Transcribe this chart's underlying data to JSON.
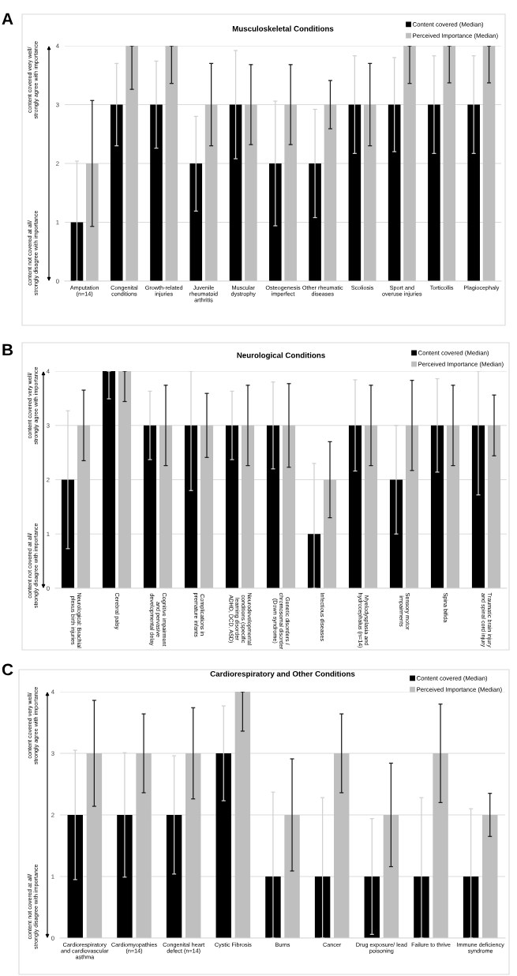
{
  "chart_data": [
    {
      "type": "bar",
      "title": "Musculoskeletal Conditions",
      "categories": [
        "Amputation\n(n=14)",
        "Congenital\nconditions",
        "Growth-related\ninjuries",
        "Juvenile\nrheumatoid\narthritis",
        "Muscular\ndystrophy",
        "Osteogenesis\nimperfect",
        "Other rheumatic\ndiseases",
        "Scoliosis",
        "Sport and\noveruse injuries",
        "Torticollis",
        "Plagiocephaly"
      ],
      "series": [
        {
          "name": "Content covered (Median)",
          "color": "#000000",
          "values": [
            1,
            3,
            3,
            2,
            3,
            2,
            2,
            3,
            3,
            3,
            3
          ],
          "errors": [
            [
              0,
              2.04
            ],
            [
              2.3,
              3.7
            ],
            [
              2.26,
              3.74
            ],
            [
              1.19,
              2.8
            ],
            [
              2.08,
              3.92
            ],
            [
              0.94,
              3.06
            ],
            [
              1.08,
              2.92
            ],
            [
              2.17,
              3.83
            ],
            [
              2.2,
              3.8
            ],
            [
              2.17,
              3.83
            ],
            [
              2.17,
              3.83
            ]
          ]
        },
        {
          "name": "Perceived Importance (Median)",
          "color": "#bfbfbf",
          "values": [
            2,
            4,
            4,
            3,
            3,
            3,
            3,
            3,
            4,
            4,
            4
          ],
          "errors": [
            [
              0.93,
              3.07
            ],
            [
              3.26,
              4
            ],
            [
              3.36,
              4
            ],
            [
              2.3,
              3.7
            ],
            [
              2.32,
              3.68
            ],
            [
              2.32,
              3.68
            ],
            [
              2.59,
              3.41
            ],
            [
              2.3,
              3.7
            ],
            [
              3.36,
              4
            ],
            [
              3.37,
              4
            ],
            [
              3.37,
              4
            ]
          ]
        }
      ],
      "ylim": [
        0,
        4
      ],
      "yticks": [
        0,
        1,
        2,
        3,
        4
      ],
      "grid": "y",
      "legend": "top right",
      "annotations": [
        "A",
        "content covered very well/\nstrongly agree with importance",
        "content not covered at all/\nstrongly disagree with importance"
      ]
    },
    {
      "type": "bar",
      "title": "Neurological Conditions",
      "categories": [
        "Neurological: Brachial\nplexus birth injuries",
        "Cerebral palsy",
        "Cognitive impairment\nand pervasive\ndevelopmental delay",
        "Complications in\npremature infants",
        "Neurodevelopmental\nconditions (specific\nlearning disorder\nADHD, DCD, ASD)",
        "Genetic disorders /\nchromosomal disorder\n(Down syndrome)",
        "Infectious diseases",
        "Myelodysplasia and\nhydrocephalus (n=14)",
        "Sensory motor\nimpairments",
        "Spina bifida",
        "Traumatic brain injury\nand spinal cord injury"
      ],
      "series": [
        {
          "name": "Content covered (Median)",
          "color": "#000000",
          "values": [
            2,
            4,
            3,
            3,
            3,
            3,
            1,
            3,
            2,
            3,
            3
          ],
          "errors": [
            [
              0.73,
              3.27
            ],
            [
              3.49,
              4
            ],
            [
              2.37,
              3.63
            ],
            [
              1.8,
              4
            ],
            [
              2.37,
              3.63
            ],
            [
              2.2,
              3.8
            ],
            [
              0,
              2.3
            ],
            [
              2.16,
              3.84
            ],
            [
              1.0,
              3.0
            ],
            [
              2.14,
              3.86
            ],
            [
              1.72,
              4
            ]
          ]
        },
        {
          "name": "Perceived Importance (Median)",
          "color": "#bfbfbf",
          "values": [
            3,
            4,
            3,
            3,
            3,
            3,
            2,
            3,
            3,
            3,
            3
          ],
          "errors": [
            [
              2.35,
              3.65
            ],
            [
              3.44,
              4
            ],
            [
              2.26,
              3.74
            ],
            [
              2.41,
              3.59
            ],
            [
              2.26,
              3.74
            ],
            [
              2.23,
              3.77
            ],
            [
              1.3,
              2.7
            ],
            [
              2.26,
              3.74
            ],
            [
              2.17,
              3.83
            ],
            [
              2.26,
              3.74
            ],
            [
              2.44,
              3.56
            ]
          ]
        }
      ],
      "ylim": [
        0,
        4
      ],
      "yticks": [
        0,
        1,
        2,
        3,
        4
      ],
      "grid": "y",
      "legend": "top right",
      "annotations": [
        "B",
        "content covered very well/\nstrongly agree with importance",
        "content not covered at all/\nstrongly disagree with importance"
      ]
    },
    {
      "type": "bar",
      "title": "Cardiorespiratory and Other Conditions",
      "categories": [
        "Cardiorespiratory\nand cardiovascular\nasthma",
        "Cardiomyopathies\n(n=14)",
        "Congenital heart\ndefect (n=14)",
        "Cystic Fibrosis",
        "Burns",
        "Cancer",
        "Drug exposure/ lead\npoisoning",
        "Failure to thrive",
        "Immune deficiency\nsyndrome"
      ],
      "series": [
        {
          "name": "Content covered (Median)",
          "color": "#000000",
          "values": [
            2,
            2,
            2,
            3,
            1,
            1,
            1,
            1,
            1
          ],
          "errors": [
            [
              0.95,
              3.05
            ],
            [
              0.99,
              3.01
            ],
            [
              1.04,
              2.96
            ],
            [
              2.23,
              3.77
            ],
            [
              0,
              2.37
            ],
            [
              0,
              2.28
            ],
            [
              0.06,
              1.94
            ],
            [
              0,
              2.28
            ],
            [
              0,
              2.1
            ]
          ]
        },
        {
          "name": "Perceived Importance (Median)",
          "color": "#bfbfbf",
          "values": [
            3,
            3,
            3,
            4,
            2,
            3,
            2,
            3,
            2
          ],
          "errors": [
            [
              2.14,
              3.86
            ],
            [
              2.36,
              3.64
            ],
            [
              2.26,
              3.74
            ],
            [
              3.36,
              4
            ],
            [
              1.09,
              2.91
            ],
            [
              2.36,
              3.64
            ],
            [
              1.16,
              2.84
            ],
            [
              2.2,
              3.8
            ],
            [
              1.65,
              2.35
            ]
          ]
        }
      ],
      "ylim": [
        0,
        4
      ],
      "yticks": [
        0,
        1,
        2,
        3,
        4
      ],
      "grid": "y",
      "legend": "top right",
      "annotations": [
        "C",
        "content covered very well/\nstrongly agree with importance",
        "content not covered at all/\nstrongly disagree with importance"
      ]
    }
  ]
}
